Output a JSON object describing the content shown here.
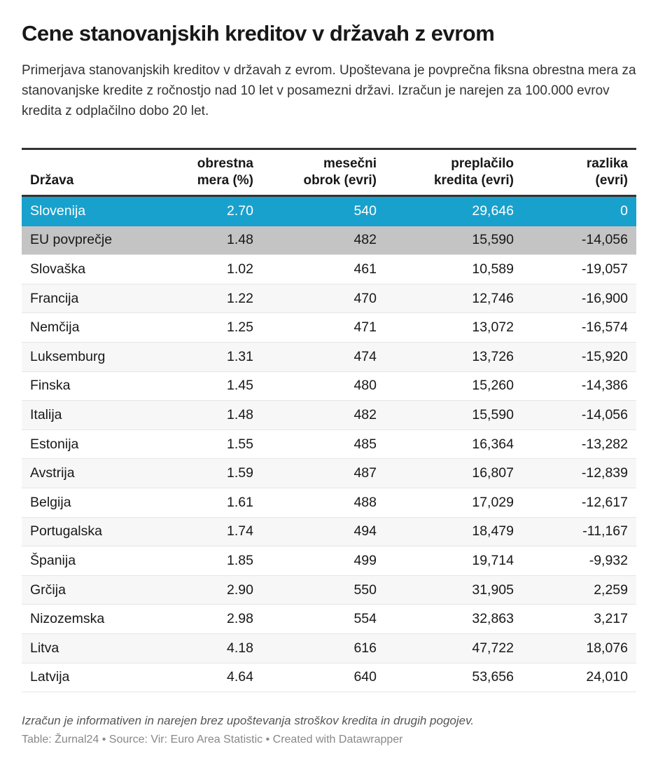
{
  "title": "Cene stanovanjskih kreditov v državah z evrom",
  "subtitle": "Primerjava stanovanjskih kreditov v državah z evrom. Upoštevana je povprečna fiksna obrestna mera za stanovanjske kredite z ročnostjo nad 10 let v posamezni državi. Izračun je narejen za 100.000 evrov kredita z odplačilno dobo 20 let.",
  "notes": "Izračun je informativen in narejen brez upoštevanja stroškov kredita in drugih pogojev.",
  "byline": "Table: Žurnal24 • Source: Vir: Euro Area Statistic • Created with Datawrapper",
  "colors": {
    "highlight": "#18a1cd",
    "eu_row": "#c4c4c4",
    "stripe": "#f7f7f7",
    "rule": "#333333"
  },
  "chart_data": {
    "type": "table",
    "columns": [
      "Država",
      "obrestna mera (%)",
      "mesečni obrok (evri)",
      "preplačilo kredita (evri)",
      "razlika (evri)"
    ],
    "rows": [
      [
        "Slovenija",
        "2.70",
        "540",
        "29,646",
        "0"
      ],
      [
        "EU povprečje",
        "1.48",
        "482",
        "15,590",
        "-14,056"
      ],
      [
        "Slovaška",
        "1.02",
        "461",
        "10,589",
        "-19,057"
      ],
      [
        "Francija",
        "1.22",
        "470",
        "12,746",
        "-16,900"
      ],
      [
        "Nemčija",
        "1.25",
        "471",
        "13,072",
        "-16,574"
      ],
      [
        "Luksemburg",
        "1.31",
        "474",
        "13,726",
        "-15,920"
      ],
      [
        "Finska",
        "1.45",
        "480",
        "15,260",
        "-14,386"
      ],
      [
        "Italija",
        "1.48",
        "482",
        "15,590",
        "-14,056"
      ],
      [
        "Estonija",
        "1.55",
        "485",
        "16,364",
        "-13,282"
      ],
      [
        "Avstrija",
        "1.59",
        "487",
        "16,807",
        "-12,839"
      ],
      [
        "Belgija",
        "1.61",
        "488",
        "17,029",
        "-12,617"
      ],
      [
        "Portugalska",
        "1.74",
        "494",
        "18,479",
        "-11,167"
      ],
      [
        "Španija",
        "1.85",
        "499",
        "19,714",
        "-9,932"
      ],
      [
        "Grčija",
        "2.90",
        "550",
        "31,905",
        "2,259"
      ],
      [
        "Nizozemska",
        "2.98",
        "554",
        "32,863",
        "3,217"
      ],
      [
        "Litva",
        "4.18",
        "616",
        "47,722",
        "18,076"
      ],
      [
        "Latvija",
        "4.64",
        "640",
        "53,656",
        "24,010"
      ]
    ],
    "highlighted_rows": {
      "Slovenija": "highlight",
      "EU povprečje": "eu_row"
    }
  }
}
